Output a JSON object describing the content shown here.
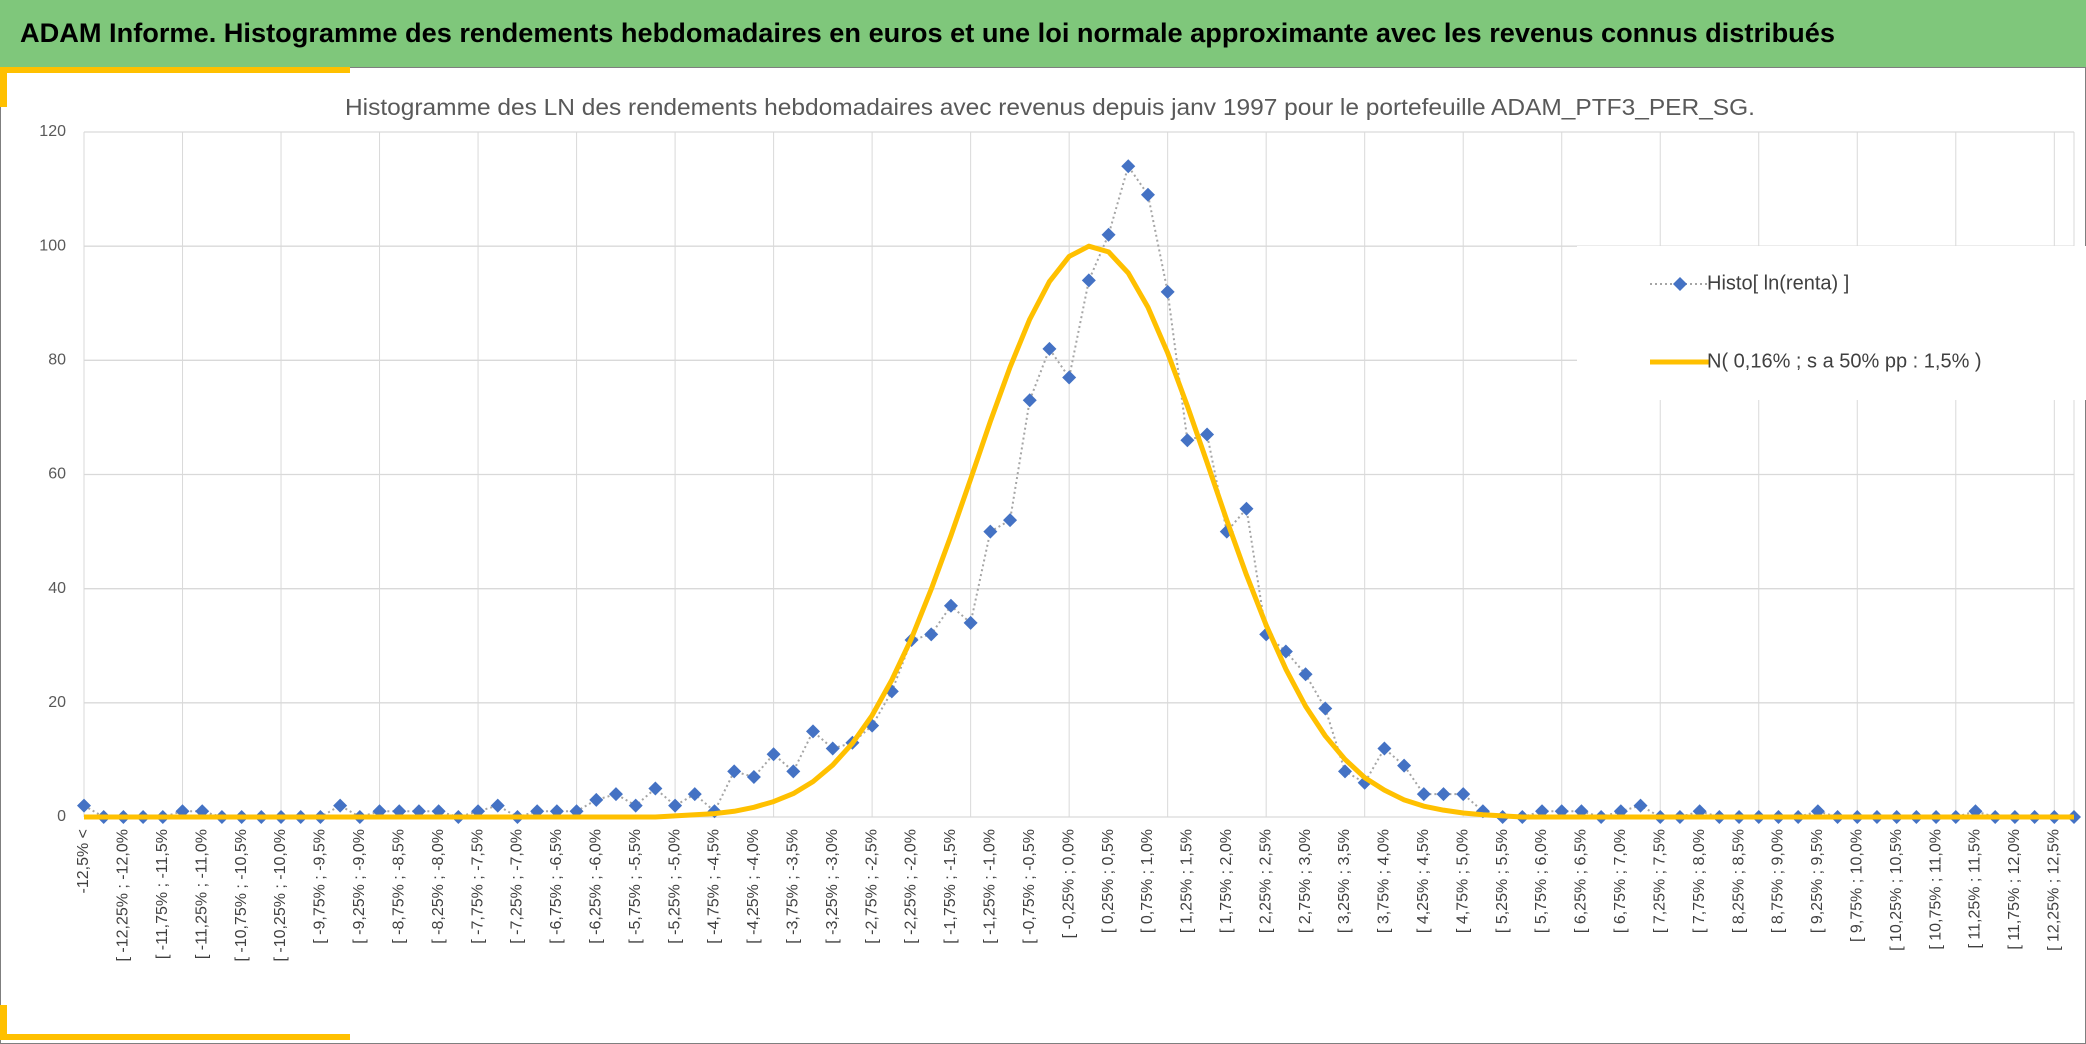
{
  "header": {
    "title": "ADAM Informe. Histogramme des rendements hebdomadaires en euros et une loi normale approximante avec les revenus connus distribués"
  },
  "chart_data": {
    "type": "line",
    "title": "Histogramme des LN des rendements hebdomadaires avec revenus depuis janv 1997 pour le portefeuille ADAM_PTF3_PER_SG.",
    "categories": [
      "-12,5% <",
      null,
      "[ -12,25% ; -12,0%",
      null,
      "[ -11,75% ; -11,5%",
      null,
      "[ -11,25% ; -11,0%",
      null,
      "[ -10,75% ; -10,5%",
      null,
      "[ -10,25% ; -10,0%",
      null,
      "[ -9,75% ; -9,5%",
      null,
      "[ -9,25% ; -9,0%",
      null,
      "[ -8,75% ; -8,5%",
      null,
      "[ -8,25% ; -8,0%",
      null,
      "[ -7,75% ; -7,5%",
      null,
      "[ -7,25% ; -7,0%",
      null,
      "[ -6,75% ; -6,5%",
      null,
      "[ -6,25% ; -6,0%",
      null,
      "[ -5,75% ; -5,5%",
      null,
      "[ -5,25% ; -5,0%",
      null,
      "[ -4,75% ; -4,5%",
      null,
      "[ -4,25% ; -4,0%",
      null,
      "[ -3,75% ; -3,5%",
      null,
      "[ -3,25% ; -3,0%",
      null,
      "[ -2,75% ; -2,5%",
      null,
      "[ -2,25% ; -2,0%",
      null,
      "[ -1,75% ; -1,5%",
      null,
      "[ -1,25% ; -1,0%",
      null,
      "[ -0,75% ; -0,5%",
      null,
      "[ -0,25% ; 0,0%",
      null,
      "[ 0,25% ; 0,5%",
      null,
      "[ 0,75% ; 1,0%",
      null,
      "[ 1,25% ; 1,5%",
      null,
      "[ 1,75% ; 2,0%",
      null,
      "[ 2,25% ; 2,5%",
      null,
      "[ 2,75% ; 3,0%",
      null,
      "[ 3,25% ; 3,5%",
      null,
      "[ 3,75% ; 4,0%",
      null,
      "[ 4,25% ; 4,5%",
      null,
      "[ 4,75% ; 5,0%",
      null,
      "[ 5,25% ; 5,5%",
      null,
      "[ 5,75% ; 6,0%",
      null,
      "[ 6,25% ; 6,5%",
      null,
      "[ 6,75% ; 7,0%",
      null,
      "[ 7,25% ; 7,5%",
      null,
      "[ 7,75% ; 8,0%",
      null,
      "[ 8,25% ; 8,5%",
      null,
      "[ 8,75% ; 9,0%",
      null,
      "[ 9,25% ; 9,5%",
      null,
      "[ 9,75% ; 10,0%",
      null,
      "[ 10,25% ; 10,5%",
      null,
      "[ 10,75% ; 11,0%",
      null,
      "[ 11,25% ; 11,5%",
      null,
      "[ 11,75% ; 12,0%",
      null,
      "[ 12,25% ; 12,5%",
      null
    ],
    "series": [
      {
        "name": "Histo[ ln(renta) ]",
        "color": "#4472c4",
        "line_color": "#a5a5a5",
        "marker": "diamond",
        "values": [
          2,
          0,
          0,
          0,
          0,
          1,
          1,
          0,
          0,
          0,
          0,
          0,
          0,
          2,
          0,
          1,
          1,
          1,
          1,
          0,
          1,
          2,
          0,
          1,
          1,
          1,
          3,
          4,
          2,
          5,
          2,
          4,
          1,
          8,
          7,
          11,
          8,
          15,
          12,
          13,
          16,
          22,
          31,
          32,
          37,
          34,
          50,
          52,
          73,
          82,
          77,
          94,
          102,
          114,
          109,
          92,
          66,
          67,
          50,
          54,
          32,
          29,
          25,
          19,
          8,
          6,
          12,
          9,
          4,
          4,
          4,
          1,
          0,
          0,
          1,
          1,
          1,
          0,
          1,
          2,
          0,
          0,
          1,
          0,
          0,
          0,
          0,
          0,
          1,
          0,
          0,
          0,
          0,
          0,
          0,
          0,
          1,
          0,
          0,
          0,
          0,
          0
        ]
      },
      {
        "name": "N( 0,16% ; s a 50% pp : 1,5% )",
        "color": "#ffc000",
        "marker": "none",
        "values": [
          0,
          0,
          0,
          0,
          0,
          0,
          0,
          0,
          0,
          0,
          0,
          0,
          0,
          0,
          0,
          0,
          0,
          0,
          0,
          0,
          0,
          0,
          0,
          0,
          0,
          0,
          0,
          0,
          0,
          0,
          0.2,
          0.4,
          0.6,
          1.0,
          1.7,
          2.7,
          4.1,
          6.2,
          9.1,
          12.9,
          17.8,
          24.0,
          31.3,
          39.9,
          49.3,
          59.2,
          69.3,
          78.8,
          87.2,
          93.8,
          98.2,
          100.0,
          99.0,
          95.3,
          89.3,
          81.3,
          72.0,
          62.1,
          52.0,
          42.4,
          33.6,
          25.9,
          19.4,
          14.2,
          10.1,
          6.9,
          4.7,
          3.0,
          1.9,
          1.2,
          0.7,
          0.4,
          0.2,
          0,
          0,
          0,
          0,
          0,
          0,
          0,
          0,
          0,
          0,
          0,
          0,
          0,
          0,
          0,
          0,
          0,
          0,
          0,
          0,
          0,
          0,
          0,
          0,
          0,
          0,
          0,
          0,
          0
        ]
      }
    ],
    "ylim": [
      0,
      120
    ],
    "yticks": [
      0,
      20,
      40,
      60,
      80,
      100,
      120
    ],
    "grid": true,
    "legend": "right"
  }
}
